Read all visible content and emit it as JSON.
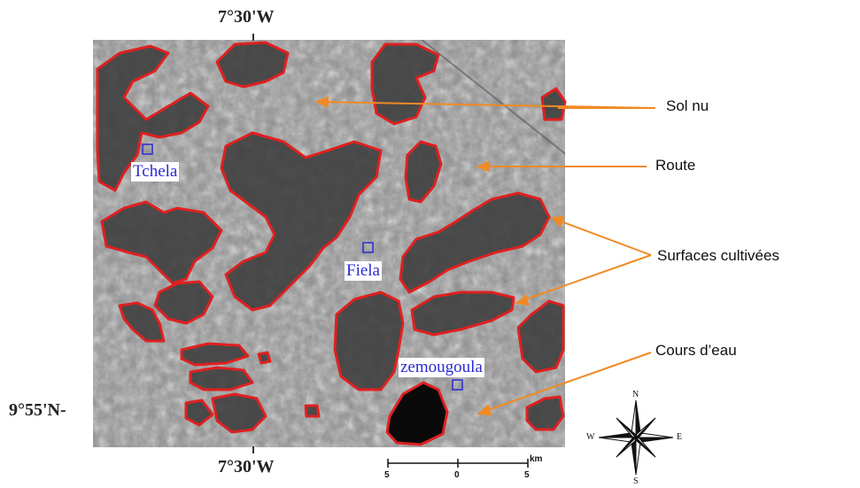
{
  "coordinates": {
    "longitude_top": "7°30'W",
    "longitude_bottom": "7°30'W",
    "latitude_left": "9°55'N-"
  },
  "places": {
    "tchela": "Tchela",
    "fiela": "Fiela",
    "zemougoula": "zemougoula"
  },
  "legend": {
    "sol_nu": "Sol nu",
    "route": "Route",
    "surfaces_cultivees": "Surfaces  cultivées",
    "cours_eau": "Cours d’eau"
  },
  "scale_bar": {
    "unit": "km",
    "left_label": "5",
    "center_label": "0",
    "right_label": "5"
  },
  "compass": {
    "n": "N",
    "s": "S",
    "e": "E",
    "w": "W"
  },
  "colors": {
    "polygon_outline": "#e02020",
    "legend_arrow": "#f08a24",
    "place_label": "#2a2ad0"
  }
}
